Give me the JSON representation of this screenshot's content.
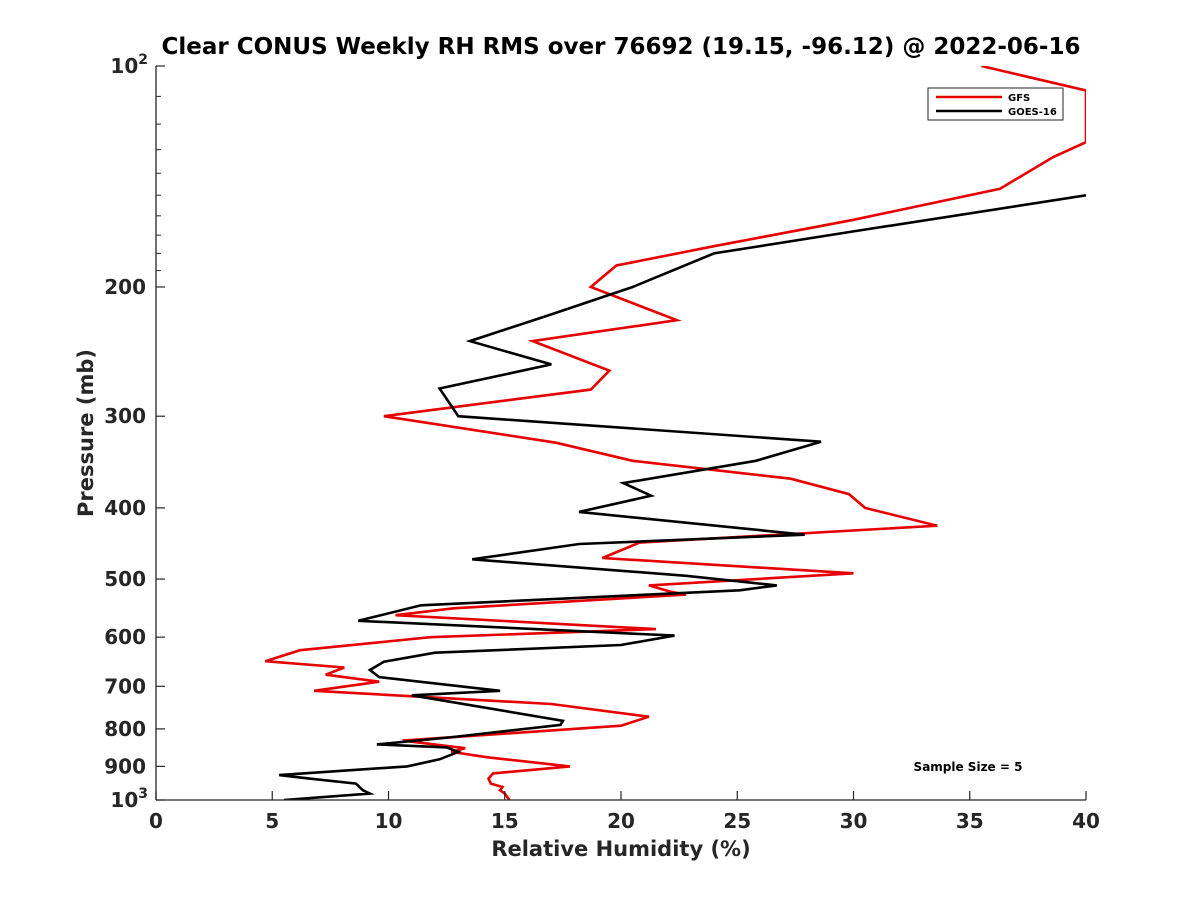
{
  "chart_data": {
    "type": "line",
    "title": "Clear CONUS Weekly RH RMS over 76692 (19.15, -96.12) @ 2022-06-16",
    "xlabel": "Relative Humidity (%)",
    "ylabel": "Pressure (mb)",
    "xlim": [
      0,
      40
    ],
    "ylim": [
      100,
      1000
    ],
    "yscale": "log",
    "y_reversed": true,
    "x_ticks": [
      0,
      5,
      10,
      15,
      20,
      25,
      30,
      35,
      40
    ],
    "x_tick_labels": [
      "0",
      "5",
      "10",
      "15",
      "20",
      "25",
      "30",
      "35",
      "40"
    ],
    "y_ticks": [
      100,
      200,
      300,
      400,
      500,
      600,
      700,
      800,
      900,
      1000
    ],
    "y_tick_labels": [
      {
        "base": "10",
        "exp": "2"
      },
      {
        "base": "200"
      },
      {
        "base": "300"
      },
      {
        "base": "400"
      },
      {
        "base": "500"
      },
      {
        "base": "600"
      },
      {
        "base": "700"
      },
      {
        "base": "800"
      },
      {
        "base": "900"
      },
      {
        "base": "10",
        "exp": "3"
      }
    ],
    "legend": {
      "placement": "top-right",
      "entries": [
        "GFS",
        "GOES-16"
      ]
    },
    "annotation": "Sample Size = 5",
    "series": [
      {
        "name": "GFS",
        "color": "#e60000",
        "points": [
          [
            35.5,
            100
          ],
          [
            40,
            108
          ],
          [
            40,
            127
          ],
          [
            38.6,
            133
          ],
          [
            36.3,
            147
          ],
          [
            30,
            162
          ],
          [
            24,
            176
          ],
          [
            19.8,
            187
          ],
          [
            18.7,
            200
          ],
          [
            22.4,
            222
          ],
          [
            16.2,
            237
          ],
          [
            19.5,
            260
          ],
          [
            18.7,
            276
          ],
          [
            9.8,
            300
          ],
          [
            17.2,
            326
          ],
          [
            20.5,
            345
          ],
          [
            27.3,
            365
          ],
          [
            29.8,
            383
          ],
          [
            30.5,
            400
          ],
          [
            33.6,
            423
          ],
          [
            20.8,
            446
          ],
          [
            19.2,
            468
          ],
          [
            30,
            491
          ],
          [
            21.2,
            510
          ],
          [
            22.1,
            520
          ],
          [
            22.8,
            525
          ],
          [
            12.8,
            548
          ],
          [
            10.3,
            560
          ],
          [
            21.5,
            585
          ],
          [
            11.8,
            600
          ],
          [
            6.2,
            625
          ],
          [
            4.7,
            647
          ],
          [
            8.1,
            660
          ],
          [
            7.3,
            675
          ],
          [
            9.6,
            690
          ],
          [
            6.8,
            710
          ],
          [
            17,
            740
          ],
          [
            21.2,
            770
          ],
          [
            20,
            792
          ],
          [
            10.6,
            830
          ],
          [
            13.3,
            850
          ],
          [
            12.7,
            860
          ],
          [
            14.3,
            875
          ],
          [
            17.8,
            900
          ],
          [
            14.5,
            920
          ],
          [
            14.3,
            935
          ],
          [
            14.4,
            950
          ],
          [
            14.9,
            960
          ],
          [
            14.8,
            970
          ],
          [
            15,
            980
          ],
          [
            15.2,
            1000
          ]
        ]
      },
      {
        "name": "GOES-16",
        "color": "#000000",
        "points": [
          [
            40,
            150
          ],
          [
            30,
            168
          ],
          [
            24,
            180
          ],
          [
            20.5,
            200
          ],
          [
            17,
            218
          ],
          [
            13.5,
            237
          ],
          [
            17,
            255
          ],
          [
            12.2,
            275
          ],
          [
            13,
            300
          ],
          [
            28.6,
            325
          ],
          [
            25.8,
            345
          ],
          [
            20.1,
            370
          ],
          [
            21.3,
            385
          ],
          [
            18.2,
            405
          ],
          [
            27.9,
            435
          ],
          [
            18.2,
            448
          ],
          [
            13.6,
            470
          ],
          [
            22.8,
            495
          ],
          [
            26.7,
            510
          ],
          [
            25.1,
            518
          ],
          [
            11.4,
            543
          ],
          [
            8.7,
            570
          ],
          [
            22.3,
            597
          ],
          [
            20,
            615
          ],
          [
            12,
            630
          ],
          [
            9.8,
            648
          ],
          [
            9.2,
            665
          ],
          [
            9.6,
            680
          ],
          [
            14.8,
            710
          ],
          [
            11,
            720
          ],
          [
            17.5,
            780
          ],
          [
            17.4,
            790
          ],
          [
            12.6,
            822
          ],
          [
            9.5,
            840
          ],
          [
            12.5,
            848
          ],
          [
            13,
            860
          ],
          [
            12.2,
            880
          ],
          [
            10.8,
            900
          ],
          [
            5.3,
            925
          ],
          [
            6.6,
            935
          ],
          [
            8.6,
            950
          ],
          [
            8.9,
            970
          ],
          [
            9.2,
            980
          ],
          [
            5.5,
            1000
          ]
        ]
      }
    ]
  }
}
